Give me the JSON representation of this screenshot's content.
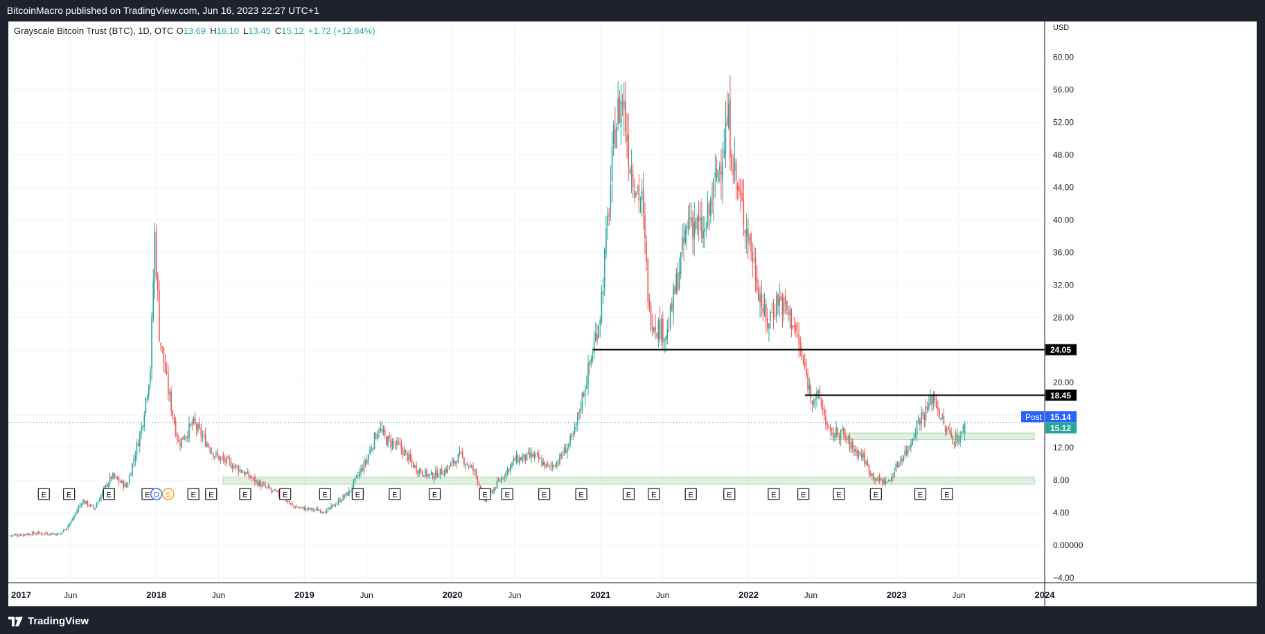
{
  "header": {
    "published_by": "BitcoinMacro published on TradingView.com, Jun 16, 2023 22:27 UTC+1"
  },
  "footer": {
    "brand": "TradingView"
  },
  "legend": {
    "symbol": "Grayscale Bitcoin Trust (BTC), 1D, OTC",
    "open_label": "O",
    "open": "13.69",
    "high_label": "H",
    "high": "16.10",
    "low_label": "L",
    "low": "13.45",
    "close_label": "C",
    "close": "15.12",
    "change": "+1.72 (+12.84%)"
  },
  "chart_data": {
    "type": "line",
    "title": "Grayscale Bitcoin Trust (BTC), 1D, OTC",
    "currency": "USD",
    "x_tick_labels": [
      "2017",
      "Jun",
      "2018",
      "Jun",
      "2019",
      "Jun",
      "2020",
      "Jun",
      "2021",
      "Jun",
      "2022",
      "Jun",
      "2023",
      "Jun",
      "2024"
    ],
    "x_ticks": [
      2017.0,
      2017.42,
      2018.0,
      2018.42,
      2019.0,
      2019.42,
      2020.0,
      2020.42,
      2021.0,
      2021.42,
      2022.0,
      2022.42,
      2023.0,
      2023.42,
      2024.0
    ],
    "y_ticks": [
      "60.00",
      "56.00",
      "52.00",
      "48.00",
      "44.00",
      "40.00",
      "36.00",
      "32.00",
      "28.00",
      "24.00",
      "20.00",
      "16.00",
      "12.00",
      "8.00",
      "4.00",
      "0.00000",
      "−4.00"
    ],
    "ylim": [
      -4.6,
      64.4
    ],
    "xlim": [
      2017.0,
      2024.0
    ],
    "grid": true,
    "series": [
      {
        "name": "GBTC",
        "x": [
          2017.0,
          2017.2,
          2017.35,
          2017.42,
          2017.5,
          2017.58,
          2017.65,
          2017.7,
          2017.8,
          2017.9,
          2017.96,
          2017.99,
          2018.02,
          2018.08,
          2018.15,
          2018.25,
          2018.4,
          2018.55,
          2018.7,
          2018.85,
          2018.92,
          2019.0,
          2019.15,
          2019.3,
          2019.42,
          2019.5,
          2019.55,
          2019.65,
          2019.75,
          2019.85,
          2019.95,
          2020.05,
          2020.15,
          2020.22,
          2020.3,
          2020.42,
          2020.55,
          2020.65,
          2020.72,
          2020.82,
          2020.88,
          2020.95,
          2021.0,
          2021.05,
          2021.1,
          2021.15,
          2021.2,
          2021.28,
          2021.33,
          2021.38,
          2021.45,
          2021.5,
          2021.6,
          2021.7,
          2021.8,
          2021.86,
          2021.92,
          2022.0,
          2022.07,
          2022.12,
          2022.2,
          2022.25,
          2022.3,
          2022.36,
          2022.42,
          2022.48,
          2022.55,
          2022.62,
          2022.7,
          2022.77,
          2022.82,
          2022.87,
          2022.95,
          2023.02,
          2023.08,
          2023.15,
          2023.2,
          2023.25,
          2023.32,
          2023.39,
          2023.44,
          2023.46
        ],
        "y": [
          1.2,
          1.5,
          1.4,
          2.8,
          5.5,
          4.5,
          7.0,
          8.5,
          7.2,
          14.5,
          22.0,
          38.5,
          26.0,
          19.0,
          12.5,
          15.0,
          11.0,
          9.5,
          7.5,
          6.0,
          4.8,
          4.5,
          4.2,
          6.5,
          10.5,
          14.5,
          13.0,
          12.0,
          9.5,
          8.5,
          9.2,
          11.0,
          9.0,
          5.5,
          7.5,
          10.5,
          11.0,
          9.5,
          10.5,
          13.5,
          18.5,
          24.0,
          29.0,
          40.0,
          52.0,
          55.0,
          47.0,
          42.0,
          28.5,
          27.0,
          26.0,
          31.0,
          40.5,
          38.0,
          46.5,
          52.5,
          44.0,
          38.0,
          31.5,
          27.0,
          30.5,
          29.0,
          27.5,
          23.0,
          18.5,
          18.0,
          13.5,
          14.0,
          12.0,
          11.0,
          9.0,
          8.0,
          7.8,
          10.5,
          12.0,
          15.5,
          16.5,
          18.5,
          14.5,
          13.0,
          13.5,
          15.12
        ]
      }
    ],
    "horizontal_lines": [
      {
        "value": 24.05,
        "label": "24.05",
        "from_x": 2020.95,
        "color": "#000000"
      },
      {
        "value": 18.45,
        "label": "18.45",
        "from_x": 2022.38,
        "color": "#000000"
      }
    ],
    "zones": [
      {
        "x_from": 2018.45,
        "x_to": 2023.93,
        "y_from": 7.5,
        "y_to": 8.4,
        "color": "#c8e6c9"
      },
      {
        "x_from": 2022.55,
        "x_to": 2023.93,
        "y_from": 13.0,
        "y_to": 13.8,
        "color": "#c8e6c9"
      }
    ],
    "price_labels": [
      {
        "label": "Post",
        "value": "15.14",
        "y": 15.14,
        "color": "#2962ff"
      },
      {
        "label": "",
        "value": "15.12",
        "y": 15.12,
        "color": "#26a69a"
      }
    ],
    "current_price_line": 15.12,
    "events": [
      {
        "x": 2017.24,
        "label": "E"
      },
      {
        "x": 2017.41,
        "label": "E"
      },
      {
        "x": 2017.68,
        "label": "E"
      },
      {
        "x": 2017.94,
        "label": "E"
      },
      {
        "x": 2018.0,
        "label": "D"
      },
      {
        "x": 2018.08,
        "label": "S"
      },
      {
        "x": 2018.25,
        "label": "E"
      },
      {
        "x": 2018.37,
        "label": "E"
      },
      {
        "x": 2018.6,
        "label": "E"
      },
      {
        "x": 2018.87,
        "label": "E"
      },
      {
        "x": 2019.14,
        "label": "E"
      },
      {
        "x": 2019.36,
        "label": "E"
      },
      {
        "x": 2019.61,
        "label": "E"
      },
      {
        "x": 2019.88,
        "label": "E"
      },
      {
        "x": 2020.22,
        "label": "E"
      },
      {
        "x": 2020.37,
        "label": "E"
      },
      {
        "x": 2020.62,
        "label": "E"
      },
      {
        "x": 2020.87,
        "label": "E"
      },
      {
        "x": 2021.19,
        "label": "E"
      },
      {
        "x": 2021.36,
        "label": "E"
      },
      {
        "x": 2021.61,
        "label": "E"
      },
      {
        "x": 2021.87,
        "label": "E"
      },
      {
        "x": 2022.17,
        "label": "E"
      },
      {
        "x": 2022.37,
        "label": "E"
      },
      {
        "x": 2022.61,
        "label": "E"
      },
      {
        "x": 2022.86,
        "label": "E"
      },
      {
        "x": 2023.16,
        "label": "E"
      },
      {
        "x": 2023.34,
        "label": "E"
      }
    ],
    "colors": {
      "up": "#26a69a",
      "down": "#ef5350",
      "grid": "#f0f3fa",
      "axis_text": "#131722"
    }
  }
}
